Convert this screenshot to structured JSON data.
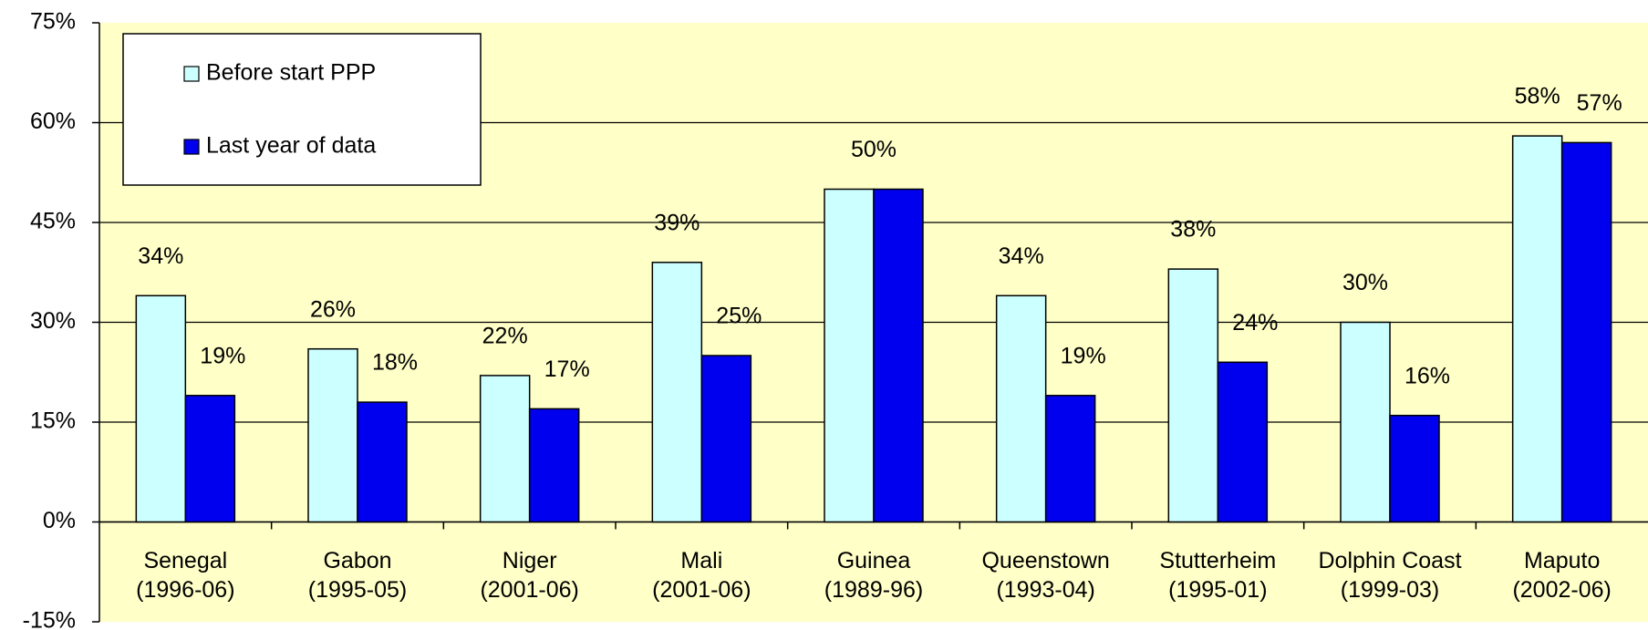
{
  "chart_data": {
    "type": "bar",
    "categories": [
      [
        "Senegal",
        "(1996-06)"
      ],
      [
        "Gabon",
        "(1995-05)"
      ],
      [
        "Niger",
        "(2001-06)"
      ],
      [
        "Mali",
        "(2001-06)"
      ],
      [
        "Guinea",
        "(1989-96)"
      ],
      [
        "Queenstown",
        "(1993-04)"
      ],
      [
        "Stutterheim",
        "(1995-01)"
      ],
      [
        "Dolphin Coast",
        "(1999-03)"
      ],
      [
        "Maputo",
        "(2002-06)"
      ]
    ],
    "series": [
      {
        "name": "Before start PPP",
        "color": "#ccffff",
        "values": [
          34,
          26,
          22,
          39,
          50,
          34,
          38,
          30,
          58
        ],
        "value_labels": [
          "34%",
          "26%",
          "22%",
          "39%",
          "50%",
          "34%",
          "38%",
          "30%",
          "58%"
        ]
      },
      {
        "name": "Last year of data",
        "color": "#0000ee",
        "values": [
          19,
          18,
          17,
          25,
          50,
          19,
          24,
          16,
          57
        ],
        "value_labels": [
          "19%",
          "18%",
          "17%",
          "25%",
          null,
          "19%",
          "24%",
          "16%",
          "57%"
        ]
      }
    ],
    "ylim": [
      -15,
      75
    ],
    "yticks": [
      {
        "value": -15,
        "label": "-15%"
      },
      {
        "value": 0,
        "label": "0%"
      },
      {
        "value": 15,
        "label": "15%"
      },
      {
        "value": 30,
        "label": "30%"
      },
      {
        "value": 45,
        "label": "45%"
      },
      {
        "value": 60,
        "label": "60%"
      },
      {
        "value": 75,
        "label": "75%"
      }
    ],
    "grid": true,
    "legend": "upper left"
  }
}
